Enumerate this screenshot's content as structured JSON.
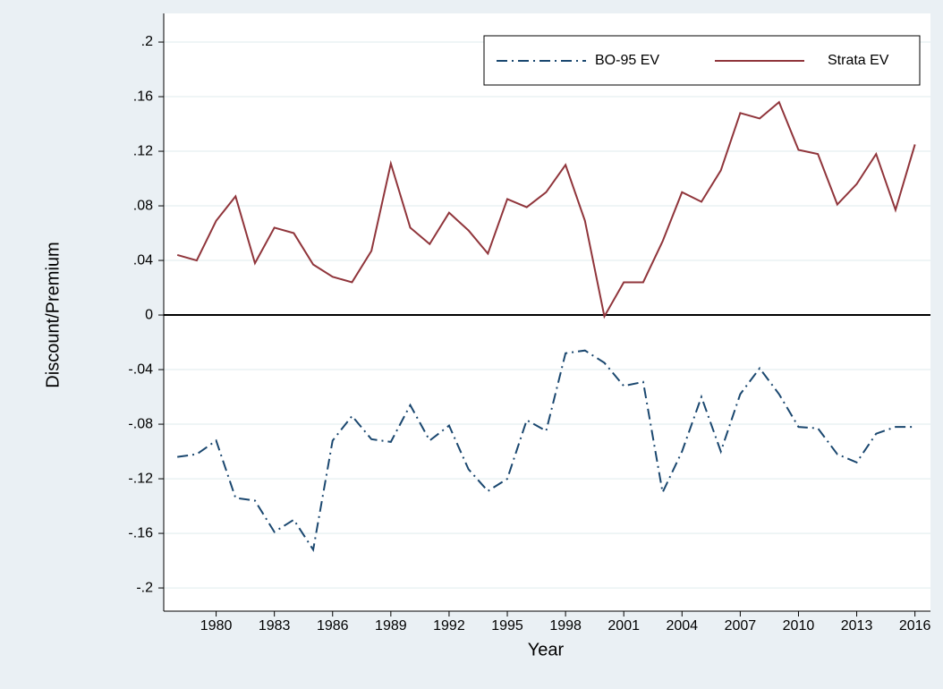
{
  "chart_data": {
    "type": "line",
    "x_label": "Year",
    "y_label": "Discount/Premium",
    "x": [
      1978,
      1979,
      1980,
      1981,
      1982,
      1983,
      1984,
      1985,
      1986,
      1987,
      1988,
      1989,
      1990,
      1991,
      1992,
      1993,
      1994,
      1995,
      1996,
      1997,
      1998,
      1999,
      2000,
      2001,
      2002,
      2003,
      2004,
      2005,
      2006,
      2007,
      2008,
      2009,
      2010,
      2011,
      2012,
      2013,
      2014,
      2015,
      2016
    ],
    "series": [
      {
        "name": "BO-95 EV",
        "color": "#1a476f",
        "dash": "dash-dot",
        "values": [
          -0.104,
          -0.102,
          -0.092,
          -0.134,
          -0.136,
          -0.159,
          -0.15,
          -0.172,
          -0.092,
          -0.074,
          -0.091,
          -0.093,
          -0.066,
          -0.092,
          -0.081,
          -0.113,
          -0.129,
          -0.12,
          -0.077,
          -0.085,
          -0.028,
          -0.026,
          -0.035,
          -0.052,
          -0.049,
          -0.13,
          -0.1,
          -0.06,
          -0.1,
          -0.058,
          -0.039,
          -0.058,
          -0.082,
          -0.083,
          -0.102,
          -0.108,
          -0.087,
          -0.082,
          -0.082
        ]
      },
      {
        "name": "Strata EV",
        "color": "#90353b",
        "dash": "solid",
        "values": [
          0.044,
          0.04,
          0.069,
          0.087,
          0.038,
          0.064,
          0.06,
          0.037,
          0.028,
          0.024,
          0.047,
          0.111,
          0.064,
          0.052,
          0.075,
          0.062,
          0.045,
          0.085,
          0.079,
          0.09,
          0.11,
          0.069,
          -0.001,
          0.024,
          0.024,
          0.054,
          0.09,
          0.083,
          0.106,
          0.148,
          0.144,
          0.156,
          0.121,
          0.118,
          0.081,
          0.096,
          0.118,
          0.077,
          0.125
        ]
      }
    ],
    "xlim": [
      1977.3,
      2016.8
    ],
    "xticks": [
      1980,
      1983,
      1986,
      1989,
      1992,
      1995,
      1998,
      2001,
      2004,
      2007,
      2010,
      2013,
      2016
    ],
    "ylim": [
      -0.217,
      0.221
    ],
    "yticks": [
      {
        "value": -0.2,
        "label": "-.2"
      },
      {
        "value": -0.16,
        "label": "-.16"
      },
      {
        "value": -0.12,
        "label": "-.12"
      },
      {
        "value": -0.08,
        "label": "-.08"
      },
      {
        "value": -0.04,
        "label": "-.04"
      },
      0,
      {
        "value": 0.04,
        "label": ".04"
      },
      {
        "value": 0.08,
        "label": ".08"
      },
      {
        "value": 0.12,
        "label": ".12"
      },
      {
        "value": 0.16,
        "label": ".16"
      },
      {
        "value": 0.2,
        "label": ".2"
      }
    ],
    "grid": true,
    "legend_position": "top-right"
  }
}
